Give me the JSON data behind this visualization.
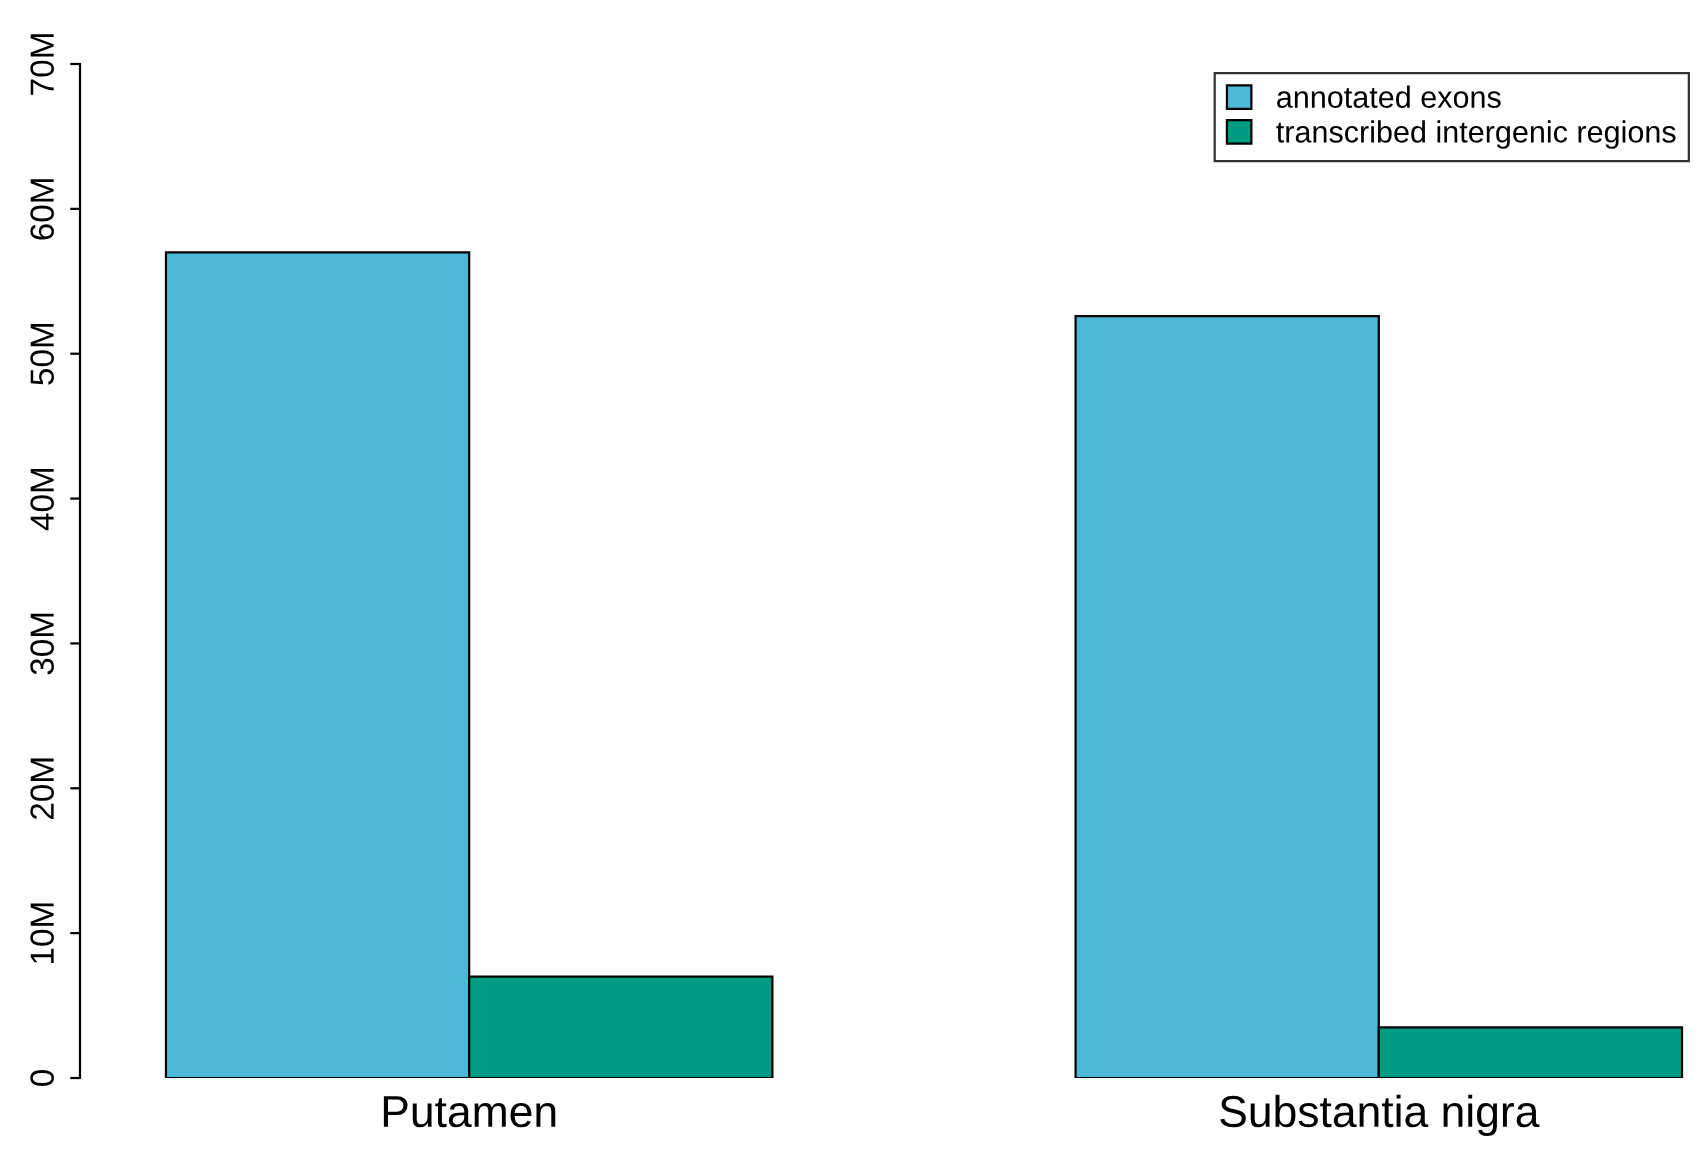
{
  "chart_data": {
    "type": "bar",
    "categories": [
      "Putamen",
      "Substantia nigra"
    ],
    "series": [
      {
        "name": "annotated exons",
        "color": "#4eb9d6",
        "values": [
          57,
          52.6
        ]
      },
      {
        "name": "transcribed intergenic regions",
        "color": "#009c82",
        "values": [
          7,
          3.5
        ]
      }
    ],
    "ylim": [
      0,
      70
    ],
    "yticks": [
      0,
      {
        "value": 10,
        "label": "10M"
      },
      {
        "value": 20,
        "label": "20M"
      },
      {
        "value": 30,
        "label": "30M"
      },
      {
        "value": 40,
        "label": "40M"
      },
      {
        "value": 50,
        "label": "50M"
      },
      {
        "value": 60,
        "label": "60M"
      },
      {
        "value": 70,
        "label": "70M"
      }
    ],
    "grid": false,
    "legend": "top right"
  }
}
